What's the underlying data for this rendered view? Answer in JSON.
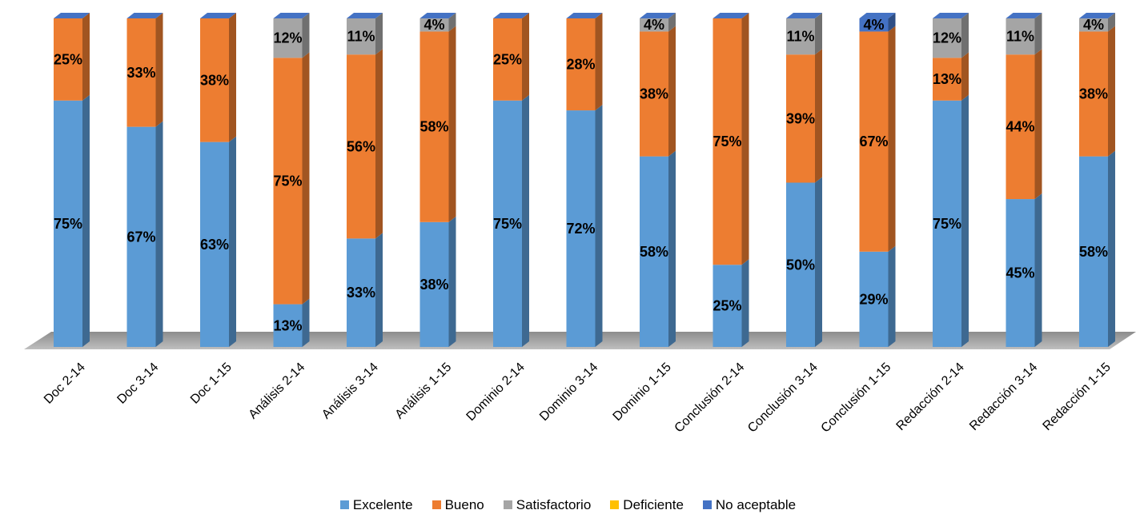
{
  "chart_data": {
    "type": "bar",
    "stacked": true,
    "percent": true,
    "categories": [
      "Doc 2-14",
      "Doc 3-14",
      "Doc 1-15",
      "Análisis 2-14",
      "Análisis 3-14",
      "Análisis 1-15",
      "Dominio 2-14",
      "Dominio 3-14",
      "Dominio 1-15",
      "Conclusión 2-14",
      "Conclusión 3-14",
      "Conclusión 1-15",
      "Redacción 2-14",
      "Redacción 3-14",
      "Redacción 1-15"
    ],
    "series": [
      {
        "name": "Excelente",
        "color": "#5b9bd5",
        "values": [
          75,
          67,
          63,
          13,
          33,
          38,
          75,
          72,
          58,
          25,
          50,
          29,
          75,
          45,
          58
        ],
        "labels": [
          "75%",
          "67%",
          "63%",
          "13%",
          "33%",
          "38%",
          "75%",
          "72%",
          "58%",
          "25%",
          "50%",
          "29%",
          "75%",
          "45%",
          "58%"
        ]
      },
      {
        "name": "Bueno",
        "color": "#ed7d31",
        "values": [
          25,
          33,
          38,
          75,
          56,
          58,
          25,
          28,
          38,
          75,
          39,
          67,
          13,
          44,
          38
        ],
        "labels": [
          "25%",
          "33%",
          "38%",
          "75%",
          "56%",
          "58%",
          "25%",
          "28%",
          "38%",
          "75%",
          "39%",
          "67%",
          "13%",
          "44%",
          "38%"
        ]
      },
      {
        "name": "Satisfactorio",
        "color": "#a5a5a5",
        "values": [
          0,
          0,
          0,
          12,
          11,
          4,
          0,
          0,
          4,
          0,
          11,
          0,
          12,
          11,
          4
        ],
        "labels": [
          "",
          "",
          "",
          "12%",
          "11%",
          "4%",
          "",
          "",
          "4%",
          "",
          "11%",
          "",
          "12%",
          "11%",
          "4%"
        ]
      },
      {
        "name": "Deficiente",
        "color": "#ffc000",
        "values": [
          0,
          0,
          0,
          0,
          0,
          0,
          0,
          0,
          0,
          0,
          0,
          0,
          0,
          0,
          0
        ],
        "labels": [
          "",
          "",
          "",
          "",
          "",
          "",
          "",
          "",
          "",
          "",
          "",
          "",
          "",
          "",
          ""
        ]
      },
      {
        "name": "No aceptable",
        "color": "#4472c4",
        "values": [
          0,
          0,
          0,
          0,
          0,
          0,
          0,
          0,
          0,
          0,
          0,
          4,
          0,
          0,
          0
        ],
        "labels": [
          "",
          "",
          "",
          "",
          "",
          "",
          "",
          "",
          "",
          "",
          "",
          "4%",
          "",
          "",
          ""
        ]
      }
    ],
    "ylim": [
      0,
      100
    ],
    "title": "",
    "xlabel": "",
    "ylabel": "",
    "grid": false,
    "legend_position": "bottom"
  }
}
